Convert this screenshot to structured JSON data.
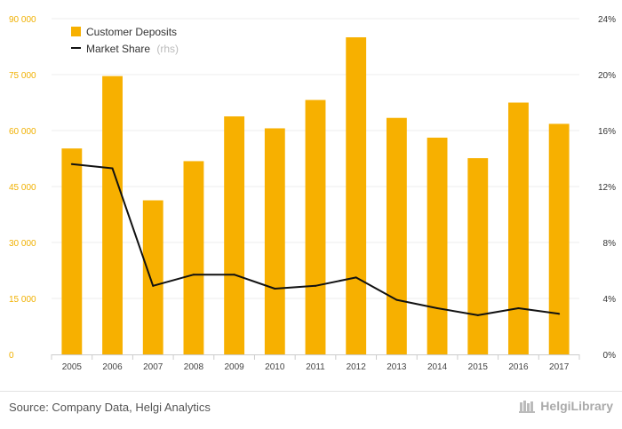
{
  "chart_data": {
    "type": "bar",
    "categories": [
      "2005",
      "2006",
      "2007",
      "2008",
      "2009",
      "2010",
      "2011",
      "2012",
      "2013",
      "2014",
      "2015",
      "2016",
      "2017"
    ],
    "series": [
      {
        "name": "Customer Deposits",
        "type": "bar",
        "axis": "left",
        "color": "#f7b000",
        "values": [
          55200,
          74600,
          41300,
          51800,
          63800,
          60600,
          68200,
          85000,
          63400,
          58100,
          52600,
          67500,
          61800
        ]
      },
      {
        "name": "Market Share",
        "suffix": "(rhs)",
        "type": "line",
        "axis": "right",
        "color": "#111111",
        "values": [
          13.6,
          13.3,
          4.9,
          5.7,
          5.7,
          4.7,
          4.9,
          5.5,
          3.9,
          3.3,
          2.8,
          3.3,
          2.9
        ]
      }
    ],
    "yleft": {
      "min": 0,
      "max": 90000,
      "ticks": [
        0,
        15000,
        30000,
        45000,
        60000,
        75000,
        90000
      ],
      "tick_labels": [
        "0",
        "15 000",
        "30 000",
        "45 000",
        "60 000",
        "75 000",
        "90 000"
      ]
    },
    "yright": {
      "min": 0,
      "max": 24,
      "ticks": [
        0,
        4,
        8,
        12,
        16,
        20,
        24
      ],
      "tick_labels": [
        "0%",
        "4%",
        "8%",
        "12%",
        "16%",
        "20%",
        "24%"
      ]
    },
    "legend_position": "top-left",
    "grid": true
  },
  "footer": {
    "source": "Source: Company Data, Helgi Analytics",
    "brand": "HelgiLibrary"
  }
}
